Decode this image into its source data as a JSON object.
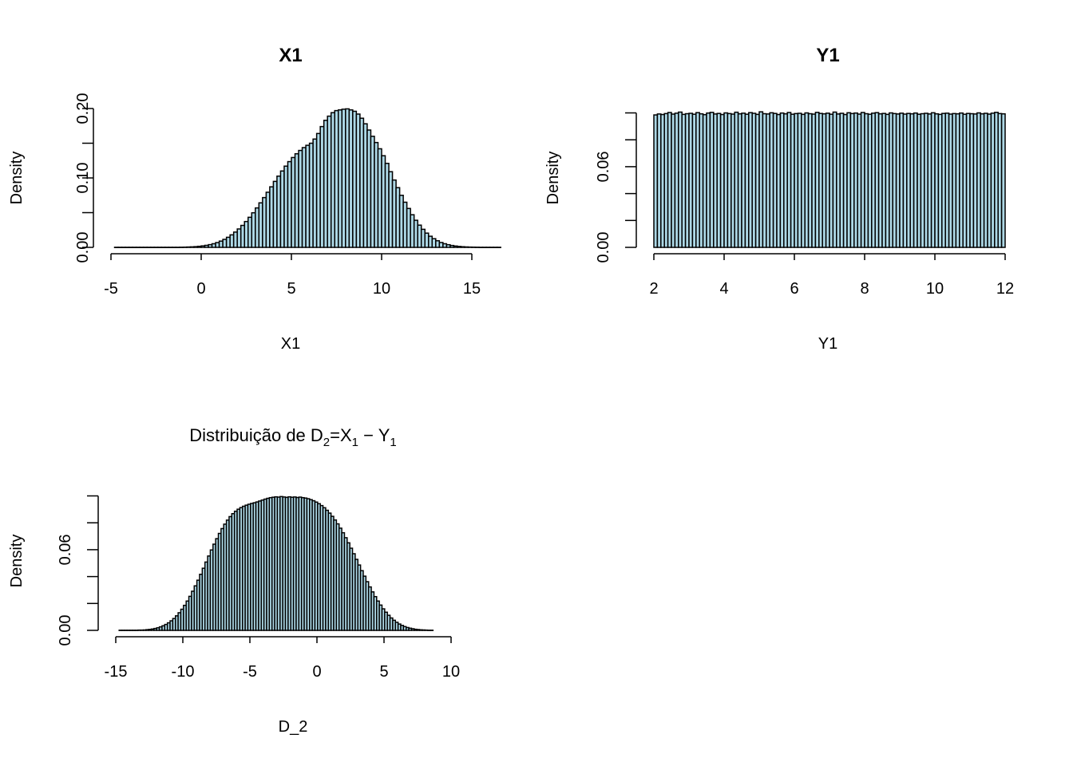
{
  "chart_data": [
    {
      "type": "bar",
      "title": "X1",
      "xlabel": "X1",
      "ylabel": "Density",
      "xlim": [
        -5,
        15
      ],
      "ylim": [
        0,
        0.2
      ],
      "x_ticks": [
        "-5",
        "0",
        "5",
        "10",
        "15"
      ],
      "y_ticks": [
        "0.00",
        "0.10",
        "0.20"
      ],
      "bins": {
        "start": -4.8,
        "width": 0.2,
        "density": [
          0.0001,
          0.0001,
          0.0001,
          0.0001,
          0.0001,
          0.0001,
          0.0001,
          0.0001,
          0.0001,
          0.0001,
          0.0001,
          0.0001,
          0.0001,
          0.0001,
          0.0001,
          0.0001,
          0.0001,
          0.0001,
          0.0002,
          0.0003,
          0.0005,
          0.0007,
          0.001,
          0.0015,
          0.0021,
          0.0029,
          0.0039,
          0.0052,
          0.0069,
          0.009,
          0.0115,
          0.0145,
          0.018,
          0.022,
          0.0265,
          0.0316,
          0.0372,
          0.0433,
          0.0498,
          0.0568,
          0.0641,
          0.0717,
          0.0794,
          0.0872,
          0.095,
          0.1026,
          0.11,
          0.117,
          0.1235,
          0.1294,
          0.1348,
          0.1396,
          0.1437,
          0.147,
          0.15,
          0.156,
          0.164,
          0.174,
          0.183,
          0.189,
          0.194,
          0.197,
          0.198,
          0.199,
          0.1995,
          0.198,
          0.196,
          0.192,
          0.186,
          0.178,
          0.169,
          0.16,
          0.151,
          0.142,
          0.132,
          0.121,
          0.109,
          0.097,
          0.086,
          0.075,
          0.065,
          0.056,
          0.047,
          0.039,
          0.032,
          0.026,
          0.0205,
          0.016,
          0.0125,
          0.0095,
          0.007,
          0.0052,
          0.0038,
          0.0027,
          0.0019,
          0.0013,
          0.0009,
          0.0006,
          0.0004,
          0.0003,
          0.0002,
          0.0001,
          0.0001,
          0.0001,
          0.0001,
          0.0001,
          0.0001
        ]
      }
    },
    {
      "type": "bar",
      "title": "Y1",
      "xlabel": "Y1",
      "ylabel": "Density",
      "xlim": [
        2,
        12
      ],
      "ylim": [
        0,
        0.1
      ],
      "x_ticks": [
        "2",
        "4",
        "6",
        "8",
        "10",
        "12"
      ],
      "y_ticks": [
        "0.00",
        "0.06"
      ],
      "bins": {
        "start": 2,
        "width": 0.1,
        "density": [
          0.0985,
          0.0992,
          0.0988,
          0.0995,
          0.1003,
          0.0991,
          0.0998,
          0.1006,
          0.0989,
          0.0994,
          0.0997,
          0.099,
          0.1002,
          0.0993,
          0.0987,
          0.0999,
          0.1004,
          0.0992,
          0.0996,
          0.0988,
          0.1,
          0.0995,
          0.0991,
          0.1005,
          0.0993,
          0.0998,
          0.099,
          0.1002,
          0.0997,
          0.0989,
          0.1008,
          0.0994,
          0.0992,
          0.1001,
          0.0996,
          0.0988,
          0.0999,
          0.0993,
          0.1003,
          0.099,
          0.0995,
          0.0997,
          0.0989,
          0.1,
          0.0994,
          0.0991,
          0.1004,
          0.0996,
          0.0993,
          0.0998,
          0.099,
          0.1006,
          0.0992,
          0.0997,
          0.0988,
          0.1001,
          0.0995,
          0.0999,
          0.0991,
          0.1003,
          0.0994,
          0.099,
          0.0998,
          0.1002,
          0.0993,
          0.0996,
          0.0989,
          0.1,
          0.0995,
          0.0992,
          0.0998,
          0.0991,
          0.0996,
          0.0993,
          0.0999,
          0.099,
          0.0994,
          0.0997,
          0.0992,
          0.1001,
          0.0993,
          0.0989,
          0.0996,
          0.0998,
          0.0991,
          0.0995,
          0.0993,
          0.0999,
          0.099,
          0.0996,
          0.0994,
          0.0992,
          0.1,
          0.0993,
          0.0997,
          0.0991,
          0.0998,
          0.1004,
          0.0995,
          0.0993
        ]
      }
    },
    {
      "type": "bar",
      "title": "Distribuição de D",
      "title_sub": "2",
      "title_mid": "=X",
      "title_sub2": "1",
      "title_minus": " − Y",
      "title_sub3": "1",
      "xlabel": "D_2",
      "ylabel": "Density",
      "xlim": [
        -15,
        10
      ],
      "ylim": [
        0,
        0.1
      ],
      "x_ticks": [
        "-15",
        "-10",
        "-5",
        "0",
        "5",
        "10"
      ],
      "y_ticks": [
        "0.00",
        "0.06"
      ],
      "bins": {
        "start": -14.75,
        "width": 0.2,
        "density": [
          0.0001,
          0.0001,
          0.0001,
          0.0001,
          0.0001,
          0.0001,
          0.0001,
          0.0002,
          0.0002,
          0.0003,
          0.0005,
          0.0007,
          0.001,
          0.0014,
          0.0019,
          0.0026,
          0.0034,
          0.0044,
          0.0056,
          0.0071,
          0.0088,
          0.0108,
          0.0131,
          0.0157,
          0.0186,
          0.0218,
          0.0253,
          0.0291,
          0.0331,
          0.0373,
          0.0417,
          0.0462,
          0.0508,
          0.0553,
          0.0598,
          0.0641,
          0.0682,
          0.0721,
          0.0757,
          0.079,
          0.082,
          0.0846,
          0.0868,
          0.0886,
          0.0901,
          0.0913,
          0.0923,
          0.0931,
          0.0938,
          0.0944,
          0.0949,
          0.0955,
          0.0962,
          0.0969,
          0.0976,
          0.0982,
          0.0987,
          0.099,
          0.0993,
          0.0991,
          0.0995,
          0.0992,
          0.0989,
          0.0993,
          0.099,
          0.0992,
          0.0988,
          0.0991,
          0.0987,
          0.0984,
          0.0979,
          0.0972,
          0.0964,
          0.0954,
          0.0942,
          0.0928,
          0.0912,
          0.0893,
          0.0872,
          0.0848,
          0.0821,
          0.0792,
          0.076,
          0.0726,
          0.0689,
          0.0651,
          0.0611,
          0.057,
          0.0528,
          0.0486,
          0.0444,
          0.0403,
          0.0362,
          0.0323,
          0.0286,
          0.0251,
          0.0218,
          0.0188,
          0.016,
          0.0135,
          0.0112,
          0.0092,
          0.0075,
          0.006,
          0.0047,
          0.0037,
          0.0028,
          0.0021,
          0.0016,
          0.0012,
          0.0008,
          0.0006,
          0.0004,
          0.0003,
          0.0002,
          0.0001,
          0.0001
        ]
      }
    }
  ]
}
